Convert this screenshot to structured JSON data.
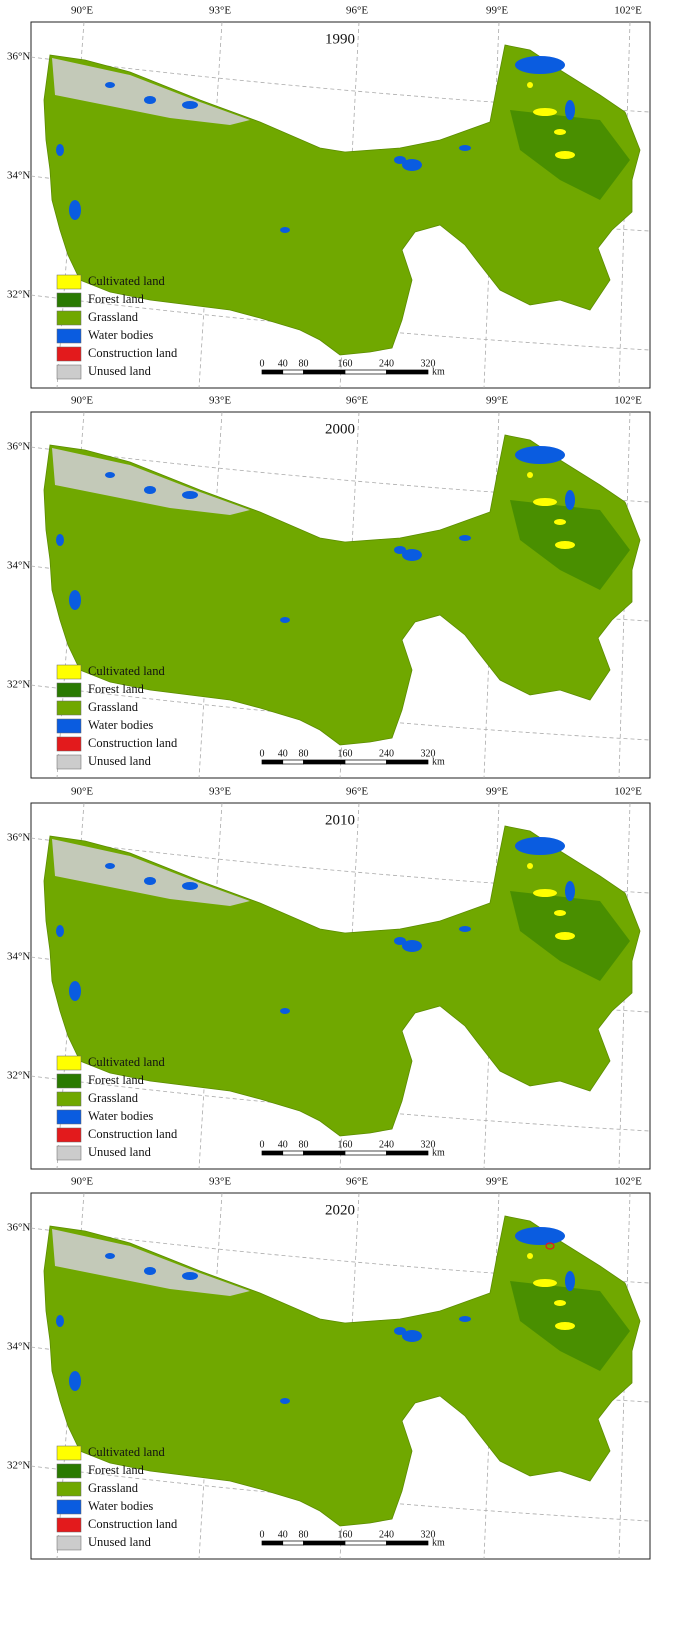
{
  "lon_labels": [
    "90°E",
    "93°E",
    "96°E",
    "99°E",
    "102°E"
  ],
  "lat_labels": [
    "36°N",
    "34°N",
    "32°N"
  ],
  "legend": [
    {
      "name": "Cultivated land",
      "color": "#ffff00"
    },
    {
      "name": "Forest land",
      "color": "#2a7a00"
    },
    {
      "name": "Grassland",
      "color": "#70a800"
    },
    {
      "name": "Water bodies",
      "color": "#0a5ce0"
    },
    {
      "name": "Construction land",
      "color": "#e31a1c"
    },
    {
      "name": "Unused land",
      "color": "#cccccc"
    }
  ],
  "scale_bar": {
    "ticks": [
      0,
      40,
      80,
      160,
      240,
      320
    ],
    "unit": "km"
  },
  "panels": [
    {
      "title": "1990"
    },
    {
      "title": "2000"
    },
    {
      "title": "2010"
    },
    {
      "title": "2020"
    }
  ]
}
